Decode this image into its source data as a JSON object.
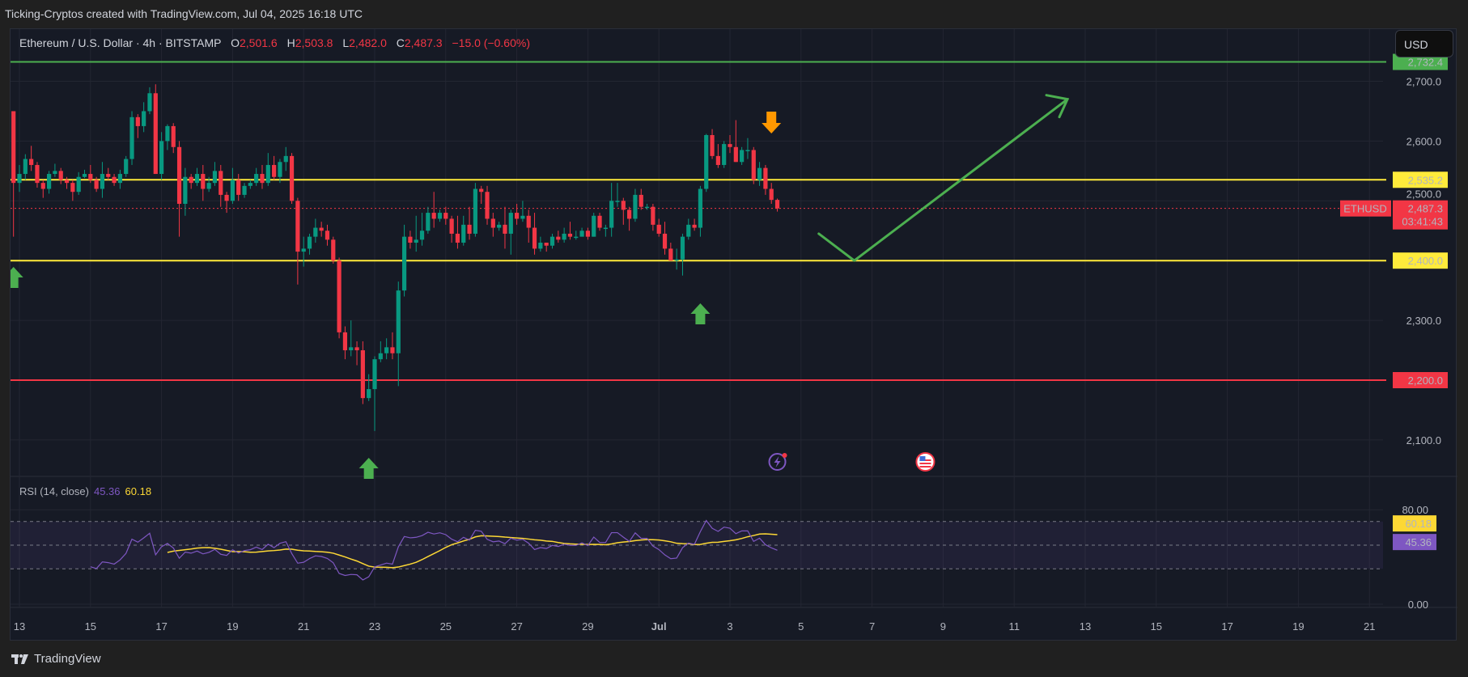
{
  "header": {
    "title": "Ticking-Cryptos created with TradingView.com, Jul 04, 2025 16:18 UTC"
  },
  "legend": {
    "symbol": "Ethereum / U.S. Dollar · 4h · BITSTAMP",
    "open_label": "O",
    "open": "2,501.6",
    "high_label": "H",
    "high": "2,503.8",
    "low_label": "L",
    "low": "2,482.0",
    "close_label": "C",
    "close": "2,487.3",
    "change": "−15.0 (−0.60%)"
  },
  "currency_button": "USD",
  "rsi": {
    "label": "RSI (14, close)",
    "value": "45.36",
    "ma_value": "60.18",
    "period": 14
  },
  "footer": {
    "brand": "TradingView"
  },
  "colors": {
    "up": "#089981",
    "down": "#f23645",
    "support": "#ffeb3b",
    "target": "#4caf50",
    "stop": "#f23645",
    "rsi": "#7e57c2",
    "rsi_ma": "#fdd835",
    "signal_down": "#ff9800"
  },
  "price_axis": {
    "ticks": [
      "2,700.0",
      "2,600.0",
      "2,500.0",
      "2,300.0",
      "2,100.0"
    ],
    "tick_values": [
      2700,
      2600,
      2500,
      2300,
      2100
    ]
  },
  "levels": [
    {
      "value": 2732.4,
      "label": "2,732.4",
      "color": "#4caf50"
    },
    {
      "value": 2535.2,
      "label": "2,535.2",
      "color": "#ffeb3b"
    },
    {
      "value": 2400.0,
      "label": "2,400.0",
      "color": "#ffeb3b"
    },
    {
      "value": 2200.0,
      "label": "2,200.0",
      "color": "#f23645"
    }
  ],
  "last_price": {
    "symbol": "ETHUSD",
    "value": 2487.3,
    "label": "2,487.3",
    "countdown": "03:41:43"
  },
  "rsi_axis": {
    "ticks": [
      "80.00",
      "0.00"
    ],
    "tick_values": [
      80,
      0
    ],
    "bands": [
      70,
      50,
      30
    ]
  },
  "time_axis": {
    "labels": [
      "13",
      "15",
      "17",
      "19",
      "21",
      "23",
      "25",
      "27",
      "29",
      "Jul",
      "3",
      "5",
      "7",
      "9",
      "11",
      "13",
      "15",
      "17",
      "19",
      "21"
    ]
  },
  "annotations": {
    "up_arrows": [
      "Jun 12 20:00",
      "Jun 22 20:00",
      "Jul 2 04:00"
    ],
    "down_arrows": [
      "Jul 4 04:00"
    ],
    "projection": [
      {
        "date": "Jul 5 12:00",
        "price": 2445
      },
      {
        "date": "Jul 6 12:00",
        "price": 2400
      },
      {
        "date": "Jul 12 12:00",
        "price": 2670
      }
    ],
    "events": [
      "lightning-event-icon",
      "us-flag-event-icon"
    ]
  },
  "chart_data": {
    "type": "candlestick",
    "interval": "4h",
    "start": "2025-06-12 16:00",
    "ylim": [
      2040,
      2790
    ],
    "candles": [
      [
        2695,
        2712,
        2640,
        2650
      ],
      [
        2650,
        2650,
        2440,
        2530
      ],
      [
        2530,
        2560,
        2515,
        2545
      ],
      [
        2545,
        2578,
        2535,
        2570
      ],
      [
        2570,
        2592,
        2550,
        2560
      ],
      [
        2560,
        2565,
        2522,
        2530
      ],
      [
        2530,
        2535,
        2505,
        2520
      ],
      [
        2520,
        2550,
        2512,
        2545
      ],
      [
        2545,
        2562,
        2540,
        2550
      ],
      [
        2550,
        2555,
        2528,
        2535
      ],
      [
        2535,
        2540,
        2520,
        2530
      ],
      [
        2530,
        2535,
        2500,
        2515
      ],
      [
        2515,
        2548,
        2510,
        2540
      ],
      [
        2540,
        2552,
        2538,
        2545
      ],
      [
        2545,
        2560,
        2530,
        2535
      ],
      [
        2535,
        2540,
        2515,
        2520
      ],
      [
        2520,
        2565,
        2505,
        2545
      ],
      [
        2545,
        2555,
        2535,
        2540
      ],
      [
        2540,
        2545,
        2525,
        2530
      ],
      [
        2530,
        2552,
        2520,
        2545
      ],
      [
        2545,
        2575,
        2540,
        2570
      ],
      [
        2570,
        2650,
        2560,
        2640
      ],
      [
        2640,
        2645,
        2605,
        2625
      ],
      [
        2625,
        2665,
        2615,
        2650
      ],
      [
        2650,
        2690,
        2645,
        2680
      ],
      [
        2680,
        2695,
        2545,
        2545
      ],
      [
        2545,
        2615,
        2535,
        2600
      ],
      [
        2600,
        2628,
        2585,
        2625
      ],
      [
        2625,
        2630,
        2580,
        2590
      ],
      [
        2590,
        2600,
        2440,
        2495
      ],
      [
        2495,
        2555,
        2475,
        2540
      ],
      [
        2540,
        2545,
        2520,
        2530
      ],
      [
        2530,
        2555,
        2525,
        2545
      ],
      [
        2545,
        2560,
        2500,
        2520
      ],
      [
        2520,
        2540,
        2515,
        2530
      ],
      [
        2530,
        2565,
        2525,
        2550
      ],
      [
        2550,
        2560,
        2490,
        2510
      ],
      [
        2510,
        2515,
        2480,
        2500
      ],
      [
        2500,
        2555,
        2495,
        2535
      ],
      [
        2535,
        2545,
        2500,
        2510
      ],
      [
        2510,
        2530,
        2505,
        2525
      ],
      [
        2525,
        2535,
        2520,
        2530
      ],
      [
        2530,
        2555,
        2525,
        2545
      ],
      [
        2545,
        2560,
        2520,
        2530
      ],
      [
        2530,
        2580,
        2525,
        2560
      ],
      [
        2560,
        2575,
        2535,
        2540
      ],
      [
        2540,
        2570,
        2530,
        2565
      ],
      [
        2565,
        2590,
        2550,
        2575
      ],
      [
        2575,
        2580,
        2495,
        2500
      ],
      [
        2500,
        2505,
        2360,
        2415
      ],
      [
        2415,
        2440,
        2390,
        2420
      ],
      [
        2420,
        2445,
        2410,
        2440
      ],
      [
        2440,
        2470,
        2430,
        2455
      ],
      [
        2455,
        2465,
        2440,
        2450
      ],
      [
        2450,
        2460,
        2425,
        2435
      ],
      [
        2435,
        2440,
        2395,
        2400
      ],
      [
        2400,
        2405,
        2270,
        2280
      ],
      [
        2280,
        2290,
        2235,
        2250
      ],
      [
        2250,
        2300,
        2240,
        2255
      ],
      [
        2255,
        2265,
        2225,
        2250
      ],
      [
        2250,
        2265,
        2160,
        2170
      ],
      [
        2170,
        2210,
        2165,
        2185
      ],
      [
        2185,
        2240,
        2115,
        2235
      ],
      [
        2235,
        2265,
        2230,
        2245
      ],
      [
        2245,
        2270,
        2235,
        2255
      ],
      [
        2255,
        2280,
        2235,
        2245
      ],
      [
        2245,
        2365,
        2190,
        2350
      ],
      [
        2350,
        2460,
        2340,
        2440
      ],
      [
        2440,
        2450,
        2420,
        2430
      ],
      [
        2430,
        2475,
        2415,
        2435
      ],
      [
        2435,
        2480,
        2425,
        2450
      ],
      [
        2450,
        2490,
        2445,
        2480
      ],
      [
        2480,
        2515,
        2455,
        2470
      ],
      [
        2470,
        2485,
        2465,
        2480
      ],
      [
        2480,
        2490,
        2460,
        2470
      ],
      [
        2470,
        2475,
        2430,
        2445
      ],
      [
        2445,
        2475,
        2420,
        2430
      ],
      [
        2430,
        2475,
        2425,
        2460
      ],
      [
        2460,
        2490,
        2435,
        2445
      ],
      [
        2445,
        2530,
        2440,
        2520
      ],
      [
        2520,
        2525,
        2495,
        2515
      ],
      [
        2515,
        2525,
        2460,
        2470
      ],
      [
        2470,
        2480,
        2440,
        2455
      ],
      [
        2455,
        2465,
        2450,
        2460
      ],
      [
        2460,
        2490,
        2420,
        2445
      ],
      [
        2445,
        2485,
        2410,
        2480
      ],
      [
        2480,
        2495,
        2460,
        2470
      ],
      [
        2470,
        2500,
        2465,
        2475
      ],
      [
        2475,
        2485,
        2430,
        2455
      ],
      [
        2455,
        2480,
        2410,
        2420
      ],
      [
        2420,
        2440,
        2415,
        2430
      ],
      [
        2430,
        2430,
        2415,
        2425
      ],
      [
        2425,
        2445,
        2420,
        2440
      ],
      [
        2440,
        2450,
        2430,
        2435
      ],
      [
        2435,
        2455,
        2430,
        2445
      ],
      [
        2445,
        2465,
        2435,
        2440
      ],
      [
        2440,
        2450,
        2435,
        2440
      ],
      [
        2440,
        2455,
        2445,
        2450
      ],
      [
        2450,
        2455,
        2435,
        2440
      ],
      [
        2440,
        2480,
        2440,
        2475
      ],
      [
        2475,
        2480,
        2450,
        2455
      ],
      [
        2455,
        2460,
        2440,
        2455
      ],
      [
        2455,
        2530,
        2440,
        2500
      ],
      [
        2500,
        2530,
        2490,
        2500
      ],
      [
        2500,
        2505,
        2460,
        2485
      ],
      [
        2485,
        2490,
        2450,
        2470
      ],
      [
        2470,
        2520,
        2465,
        2510
      ],
      [
        2510,
        2520,
        2485,
        2490
      ],
      [
        2490,
        2495,
        2485,
        2490
      ],
      [
        2490,
        2495,
        2450,
        2460
      ],
      [
        2460,
        2470,
        2440,
        2445
      ],
      [
        2445,
        2465,
        2410,
        2420
      ],
      [
        2420,
        2430,
        2400,
        2400
      ],
      [
        2400,
        2420,
        2385,
        2402
      ],
      [
        2402,
        2445,
        2375,
        2440
      ],
      [
        2440,
        2470,
        2435,
        2460
      ],
      [
        2460,
        2470,
        2450,
        2455
      ],
      [
        2455,
        2525,
        2440,
        2520
      ],
      [
        2520,
        2612,
        2515,
        2610
      ],
      [
        2610,
        2620,
        2570,
        2575
      ],
      [
        2575,
        2595,
        2555,
        2560
      ],
      [
        2560,
        2600,
        2555,
        2595
      ],
      [
        2595,
        2610,
        2580,
        2590
      ],
      [
        2590,
        2635,
        2565,
        2565
      ],
      [
        2565,
        2590,
        2560,
        2585
      ],
      [
        2585,
        2605,
        2570,
        2585
      ],
      [
        2585,
        2590,
        2528,
        2535
      ],
      [
        2535,
        2565,
        2525,
        2555
      ],
      [
        2555,
        2560,
        2510,
        2520
      ],
      [
        2520,
        2530,
        2495,
        2501.6
      ],
      [
        2501.6,
        2503.8,
        2482.0,
        2487.3
      ]
    ]
  }
}
